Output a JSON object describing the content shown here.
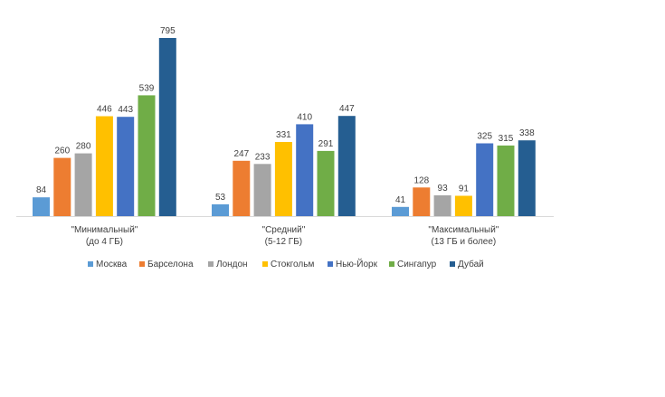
{
  "chart_data": {
    "type": "bar",
    "categories": [
      [
        "\"Минимальный\"",
        "(до 4 ГБ)"
      ],
      [
        "\"Средний\"",
        "(5-12 ГБ)"
      ],
      [
        "\"Максимальный\"",
        "(13 ГБ и более)"
      ]
    ],
    "series": [
      {
        "name": "Москва",
        "color": "#5b9bd5",
        "values": [
          84,
          53,
          41
        ]
      },
      {
        "name": "Барселона",
        "color": "#ed7d31",
        "values": [
          260,
          247,
          128
        ]
      },
      {
        "name": "Лондон",
        "color": "#a5a5a5",
        "values": [
          280,
          233,
          93
        ]
      },
      {
        "name": "Стокгольм",
        "color": "#ffc000",
        "values": [
          446,
          331,
          91
        ]
      },
      {
        "name": "Нью-Йорк",
        "color": "#4472c4",
        "values": [
          443,
          410,
          325
        ]
      },
      {
        "name": "Сингапур",
        "color": "#70ad47",
        "values": [
          539,
          291,
          315
        ]
      },
      {
        "name": "Дубай",
        "color": "#255e91",
        "values": [
          795,
          447,
          338
        ]
      }
    ],
    "ylim": [
      0,
      800
    ],
    "grid": false,
    "legend_position": "bottom"
  }
}
